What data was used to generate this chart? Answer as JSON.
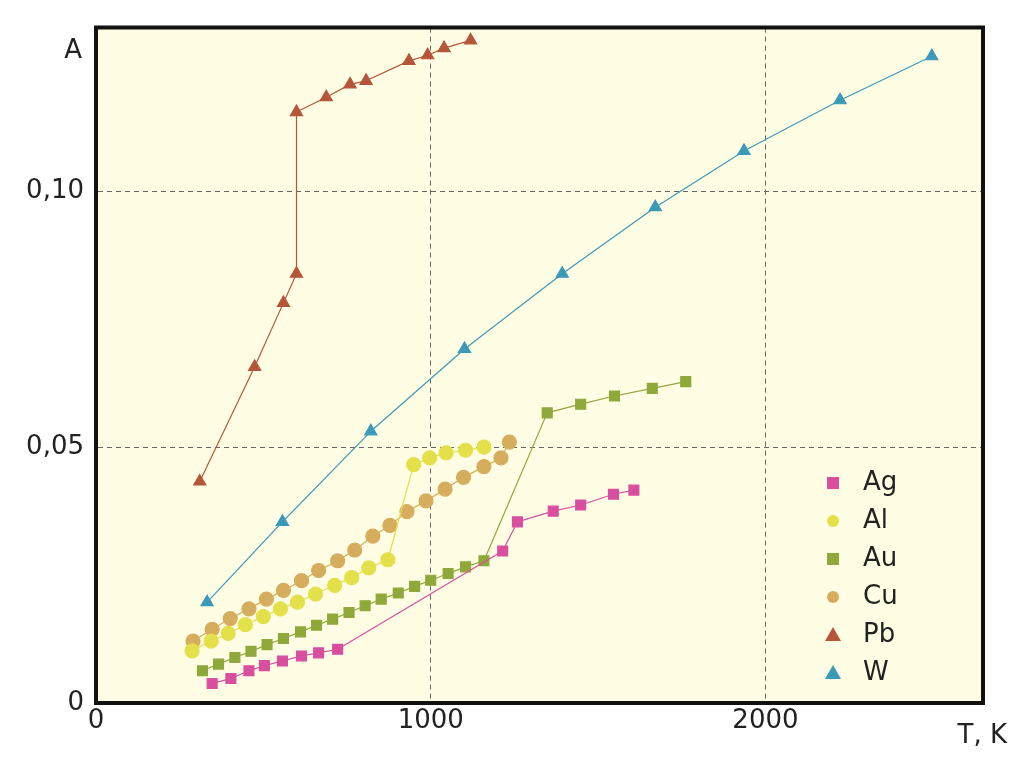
{
  "chart_data": {
    "type": "line",
    "xlabel": "T, K",
    "ylabel": "A",
    "xlim": [
      0,
      2650
    ],
    "ylim": [
      0,
      0.132
    ],
    "xticks": [
      0,
      1000,
      2000
    ],
    "yticks": [
      {
        "value": 0,
        "label": "0"
      },
      {
        "value": 0.05,
        "label": "0,05"
      },
      {
        "value": 0.1,
        "label": "0,10"
      }
    ],
    "grid": true,
    "legend": "bottom right",
    "series": [
      {
        "name": "Ag",
        "color": "#d94fa0",
        "marker": "square",
        "x": [
          347,
          403,
          457,
          503,
          557,
          614,
          665,
          722,
          1215,
          1259,
          1366,
          1448,
          1546,
          1607
        ],
        "values": [
          0.0038,
          0.0048,
          0.0063,
          0.0073,
          0.0082,
          0.0092,
          0.0098,
          0.0105,
          0.0297,
          0.0354,
          0.0375,
          0.0387,
          0.0408,
          0.0416
        ]
      },
      {
        "name": "Al",
        "color": "#e3e04a",
        "marker": "circle",
        "x": [
          287,
          344,
          395,
          446,
          500,
          551,
          602,
          656,
          713,
          764,
          815,
          872,
          949,
          997,
          1046,
          1104,
          1159
        ],
        "values": [
          0.0102,
          0.0121,
          0.0136,
          0.0153,
          0.0169,
          0.0184,
          0.0197,
          0.0213,
          0.023,
          0.0245,
          0.0264,
          0.028,
          0.0466,
          0.0479,
          0.0489,
          0.0494,
          0.05
        ]
      },
      {
        "name": "Au",
        "color": "#8fa83a",
        "marker": "square",
        "x": [
          318,
          366,
          415,
          463,
          511,
          560,
          611,
          659,
          707,
          756,
          804,
          852,
          903,
          952,
          1000,
          1052,
          1104,
          1159,
          1348,
          1448,
          1549,
          1662,
          1762
        ],
        "values": [
          0.0063,
          0.0076,
          0.0089,
          0.0101,
          0.0114,
          0.0126,
          0.0139,
          0.0152,
          0.0164,
          0.0177,
          0.019,
          0.0203,
          0.0215,
          0.0228,
          0.024,
          0.0253,
          0.0266,
          0.0278,
          0.0567,
          0.0584,
          0.06,
          0.0615,
          0.0628
        ]
      },
      {
        "name": "Cu",
        "color": "#d6ad5c",
        "marker": "circle",
        "x": [
          290,
          347,
          401,
          457,
          509,
          560,
          614,
          665,
          722,
          773,
          827,
          878,
          929,
          986,
          1043,
          1098,
          1159,
          1210,
          1235
        ],
        "values": [
          0.0121,
          0.0144,
          0.0165,
          0.0184,
          0.0203,
          0.022,
          0.0239,
          0.0259,
          0.0278,
          0.0299,
          0.0326,
          0.0347,
          0.0374,
          0.0395,
          0.0418,
          0.0441,
          0.0462,
          0.0479,
          0.051
        ]
      },
      {
        "name": "Pb",
        "color": "#b5563a",
        "marker": "triangle",
        "x": [
          310,
          474,
          560,
          599,
          599,
          688,
          759,
          807,
          935,
          991,
          1040,
          1119
        ],
        "values": [
          0.0433,
          0.0657,
          0.0782,
          0.0839,
          0.1155,
          0.1184,
          0.1209,
          0.1216,
          0.1255,
          0.1266,
          0.128,
          0.1295
        ]
      },
      {
        "name": "W",
        "color": "#3a9ab8",
        "marker": "triangle",
        "x": [
          332,
          557,
          821,
          1101,
          1393,
          1671,
          1936,
          2223,
          2497
        ],
        "values": [
          0.0197,
          0.0354,
          0.0531,
          0.0692,
          0.0839,
          0.0969,
          0.1079,
          0.1178,
          0.1264
        ]
      }
    ]
  }
}
